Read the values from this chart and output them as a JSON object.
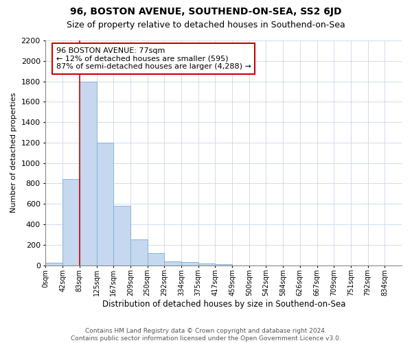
{
  "title": "96, BOSTON AVENUE, SOUTHEND-ON-SEA, SS2 6JD",
  "subtitle": "Size of property relative to detached houses in Southend-on-Sea",
  "xlabel": "Distribution of detached houses by size in Southend-on-Sea",
  "ylabel": "Number of detached properties",
  "footer_line1": "Contains HM Land Registry data © Crown copyright and database right 2024.",
  "footer_line2": "Contains public sector information licensed under the Open Government Licence v3.0.",
  "bin_labels": [
    "0sqm",
    "42sqm",
    "83sqm",
    "125sqm",
    "167sqm",
    "209sqm",
    "250sqm",
    "292sqm",
    "334sqm",
    "375sqm",
    "417sqm",
    "459sqm",
    "500sqm",
    "542sqm",
    "584sqm",
    "626sqm",
    "667sqm",
    "709sqm",
    "751sqm",
    "792sqm",
    "834sqm"
  ],
  "bar_heights": [
    25,
    840,
    1800,
    1200,
    580,
    255,
    120,
    35,
    30,
    20,
    10,
    0,
    0,
    0,
    0,
    0,
    0,
    0,
    0,
    0,
    0
  ],
  "bar_color": "#c5d8ef",
  "bar_edge_color": "#7aafd4",
  "vline_color": "#cc0000",
  "vline_x": 2,
  "annotation_text": "96 BOSTON AVENUE: 77sqm\n← 12% of detached houses are smaller (595)\n87% of semi-detached houses are larger (4,288) →",
  "annotation_box_color": "#cc0000",
  "annotation_text_color": "#000000",
  "ylim": [
    0,
    2200
  ],
  "yticks": [
    0,
    200,
    400,
    600,
    800,
    1000,
    1200,
    1400,
    1600,
    1800,
    2000,
    2200
  ],
  "background_color": "#ffffff",
  "grid_color": "#c8d8ea",
  "title_fontsize": 10,
  "subtitle_fontsize": 9,
  "annot_fontsize": 8,
  "tick_label_fontsize": 7,
  "ylabel_fontsize": 8,
  "xlabel_fontsize": 8.5,
  "footer_fontsize": 6.5
}
